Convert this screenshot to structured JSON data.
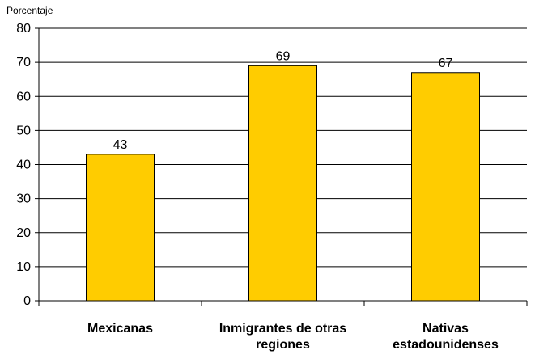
{
  "chart_data": {
    "type": "bar",
    "ylabel": "Porcentaje",
    "categories": [
      [
        "Mexicanas"
      ],
      [
        "Inmigrantes de otras",
        "regiones"
      ],
      [
        "Nativas",
        "estadounidenses"
      ]
    ],
    "values": [
      43,
      69,
      67
    ],
    "data_labels": [
      "43",
      "69",
      "67"
    ],
    "ylim": [
      0,
      80
    ],
    "yticks": [
      0,
      10,
      20,
      30,
      40,
      50,
      60,
      70,
      80
    ],
    "grid": true,
    "colors": {
      "bar_fill": "#FFCC00",
      "bar_stroke": "#000000",
      "gridline": "#000000",
      "axis": "#000000",
      "text": "#000000"
    }
  }
}
